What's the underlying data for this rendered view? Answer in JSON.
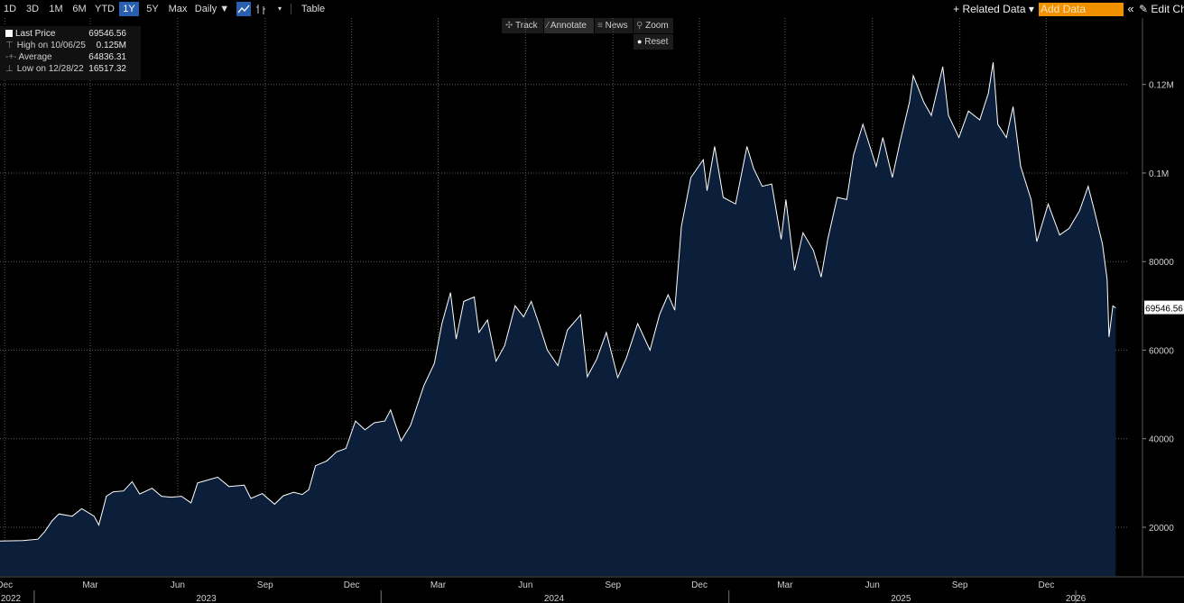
{
  "toolbar": {
    "periods": [
      "1D",
      "3D",
      "1M",
      "6M",
      "YTD",
      "1Y",
      "5Y",
      "Max"
    ],
    "active_period": "1Y",
    "frequency": "Daily ▼",
    "table_label": "Table",
    "related_data": "+ Related Data ▾",
    "add_data_placeholder": "Add Data",
    "collapse": "«",
    "edit_chart": "✎ Edit Ch"
  },
  "subbar": {
    "track": "Track",
    "annotate": "Annotate",
    "news": "News",
    "zoom": "Zoom",
    "reset": "Reset"
  },
  "legend": [
    {
      "label": "Last Price",
      "value": "69546.56"
    },
    {
      "label": "High on 10/06/25",
      "value": "0.125M"
    },
    {
      "label": "Average",
      "value": "64836.31"
    },
    {
      "label": "Low on 12/28/22",
      "value": "16517.32"
    }
  ],
  "colors": {
    "area_fill": "#0b1f3a",
    "line": "#ffffff",
    "active_tab": "#2a5fb0",
    "add_data": "#f29100"
  },
  "chart_data": {
    "type": "area",
    "series": [
      {
        "name": "Last Price"
      }
    ],
    "last_value_label": "69546.56",
    "y_ticks": [
      {
        "value": 20000,
        "label": "20000"
      },
      {
        "value": 40000,
        "label": "40000"
      },
      {
        "value": 60000,
        "label": "60000"
      },
      {
        "value": 80000,
        "label": "80000"
      },
      {
        "value": 100000,
        "label": "0.1M"
      },
      {
        "value": 120000,
        "label": "0.12M"
      }
    ],
    "ylim": [
      9000,
      135000
    ],
    "x_month_labels": [
      {
        "date": "2022-12-01",
        "label": "Dec"
      },
      {
        "date": "2023-03-01",
        "label": "Mar"
      },
      {
        "date": "2023-06-01",
        "label": "Jun"
      },
      {
        "date": "2023-09-01",
        "label": "Sep"
      },
      {
        "date": "2023-12-01",
        "label": "Dec"
      },
      {
        "date": "2024-03-01",
        "label": "Mar"
      },
      {
        "date": "2024-06-01",
        "label": "Jun"
      },
      {
        "date": "2024-09-01",
        "label": "Sep"
      },
      {
        "date": "2024-12-01",
        "label": "Dec"
      },
      {
        "date": "2025-03-01",
        "label": "Mar"
      },
      {
        "date": "2025-06-01",
        "label": "Jun"
      },
      {
        "date": "2025-09-01",
        "label": "Sep"
      },
      {
        "date": "2025-12-01",
        "label": "Dec"
      }
    ],
    "x_year_labels": [
      {
        "date": "2022-12-01",
        "label": "2022"
      },
      {
        "date": "2023-07-01",
        "label": "2023"
      },
      {
        "date": "2024-07-01",
        "label": "2024"
      },
      {
        "date": "2025-07-01",
        "label": "2025"
      },
      {
        "date": "2026-01-01",
        "label": "2026"
      }
    ],
    "x_year_dividers": [
      "2023-01-01",
      "2024-01-01",
      "2025-01-01",
      "2026-01-01"
    ],
    "xlim": [
      "2022-11-26",
      "2026-02-25"
    ],
    "grid": true,
    "points": [
      [
        "2022-11-26",
        16900
      ],
      [
        "2022-12-20",
        17000
      ],
      [
        "2023-01-05",
        17300
      ],
      [
        "2023-01-12",
        19000
      ],
      [
        "2023-01-20",
        21500
      ],
      [
        "2023-01-27",
        23000
      ],
      [
        "2023-02-10",
        22500
      ],
      [
        "2023-02-20",
        24200
      ],
      [
        "2023-03-05",
        22500
      ],
      [
        "2023-03-10",
        20500
      ],
      [
        "2023-03-18",
        27000
      ],
      [
        "2023-03-25",
        28000
      ],
      [
        "2023-04-05",
        28200
      ],
      [
        "2023-04-14",
        30300
      ],
      [
        "2023-04-22",
        27500
      ],
      [
        "2023-05-05",
        28800
      ],
      [
        "2023-05-15",
        27000
      ],
      [
        "2023-05-25",
        26800
      ],
      [
        "2023-06-05",
        27000
      ],
      [
        "2023-06-15",
        25500
      ],
      [
        "2023-06-22",
        30000
      ],
      [
        "2023-06-30",
        30500
      ],
      [
        "2023-07-13",
        31300
      ],
      [
        "2023-07-25",
        29200
      ],
      [
        "2023-08-10",
        29500
      ],
      [
        "2023-08-17",
        26500
      ],
      [
        "2023-08-29",
        27600
      ],
      [
        "2023-09-11",
        25200
      ],
      [
        "2023-09-20",
        27100
      ],
      [
        "2023-10-01",
        27900
      ],
      [
        "2023-10-10",
        27400
      ],
      [
        "2023-10-17",
        28500
      ],
      [
        "2023-10-24",
        33900
      ],
      [
        "2023-11-05",
        35000
      ],
      [
        "2023-11-15",
        37000
      ],
      [
        "2023-11-25",
        37800
      ],
      [
        "2023-12-05",
        44000
      ],
      [
        "2023-12-15",
        42000
      ],
      [
        "2023-12-25",
        43600
      ],
      [
        "2024-01-05",
        44000
      ],
      [
        "2024-01-11",
        46500
      ],
      [
        "2024-01-22",
        39500
      ],
      [
        "2024-02-01",
        43000
      ],
      [
        "2024-02-15",
        52000
      ],
      [
        "2024-02-26",
        57000
      ],
      [
        "2024-03-05",
        66000
      ],
      [
        "2024-03-14",
        73000
      ],
      [
        "2024-03-20",
        62500
      ],
      [
        "2024-03-28",
        71000
      ],
      [
        "2024-04-08",
        72000
      ],
      [
        "2024-04-13",
        64000
      ],
      [
        "2024-04-22",
        66800
      ],
      [
        "2024-05-01",
        57500
      ],
      [
        "2024-05-10",
        61000
      ],
      [
        "2024-05-21",
        70000
      ],
      [
        "2024-05-30",
        67500
      ],
      [
        "2024-06-07",
        71000
      ],
      [
        "2024-06-15",
        66000
      ],
      [
        "2024-06-24",
        60000
      ],
      [
        "2024-07-05",
        56500
      ],
      [
        "2024-07-15",
        64500
      ],
      [
        "2024-07-29",
        68000
      ],
      [
        "2024-08-05",
        54000
      ],
      [
        "2024-08-15",
        58000
      ],
      [
        "2024-08-25",
        64000
      ],
      [
        "2024-09-06",
        53800
      ],
      [
        "2024-09-15",
        58200
      ],
      [
        "2024-09-27",
        66000
      ],
      [
        "2024-10-10",
        60000
      ],
      [
        "2024-10-20",
        68000
      ],
      [
        "2024-10-29",
        72500
      ],
      [
        "2024-11-05",
        69000
      ],
      [
        "2024-11-12",
        88000
      ],
      [
        "2024-11-22",
        99000
      ],
      [
        "2024-12-05",
        103000
      ],
      [
        "2024-12-09",
        96000
      ],
      [
        "2024-12-17",
        106000
      ],
      [
        "2024-12-26",
        94500
      ],
      [
        "2025-01-08",
        93000
      ],
      [
        "2025-01-20",
        106000
      ],
      [
        "2025-01-27",
        101000
      ],
      [
        "2025-02-05",
        97000
      ],
      [
        "2025-02-15",
        97500
      ],
      [
        "2025-02-25",
        85000
      ],
      [
        "2025-03-02",
        94000
      ],
      [
        "2025-03-11",
        78000
      ],
      [
        "2025-03-20",
        86500
      ],
      [
        "2025-03-31",
        82500
      ],
      [
        "2025-04-08",
        76500
      ],
      [
        "2025-04-15",
        85000
      ],
      [
        "2025-04-25",
        94500
      ],
      [
        "2025-05-05",
        94000
      ],
      [
        "2025-05-12",
        104000
      ],
      [
        "2025-05-22",
        111000
      ],
      [
        "2025-06-05",
        101500
      ],
      [
        "2025-06-12",
        108000
      ],
      [
        "2025-06-22",
        99000
      ],
      [
        "2025-06-30",
        107000
      ],
      [
        "2025-07-10",
        116000
      ],
      [
        "2025-07-14",
        122000
      ],
      [
        "2025-07-25",
        116000
      ],
      [
        "2025-08-02",
        113000
      ],
      [
        "2025-08-14",
        124000
      ],
      [
        "2025-08-20",
        113000
      ],
      [
        "2025-08-31",
        108000
      ],
      [
        "2025-09-10",
        114000
      ],
      [
        "2025-09-22",
        112000
      ],
      [
        "2025-10-01",
        118000
      ],
      [
        "2025-10-06",
        125000
      ],
      [
        "2025-10-11",
        111000
      ],
      [
        "2025-10-20",
        108000
      ],
      [
        "2025-10-27",
        115000
      ],
      [
        "2025-11-04",
        101500
      ],
      [
        "2025-11-15",
        94000
      ],
      [
        "2025-11-21",
        84500
      ],
      [
        "2025-12-03",
        93000
      ],
      [
        "2025-12-15",
        86000
      ],
      [
        "2025-12-25",
        87500
      ],
      [
        "2026-01-05",
        91500
      ],
      [
        "2026-01-14",
        97000
      ],
      [
        "2026-01-20",
        92000
      ],
      [
        "2026-01-29",
        84000
      ],
      [
        "2026-02-03",
        76000
      ],
      [
        "2026-02-05",
        63000
      ],
      [
        "2026-02-09",
        70000
      ],
      [
        "2026-02-12",
        69546.56
      ]
    ]
  }
}
